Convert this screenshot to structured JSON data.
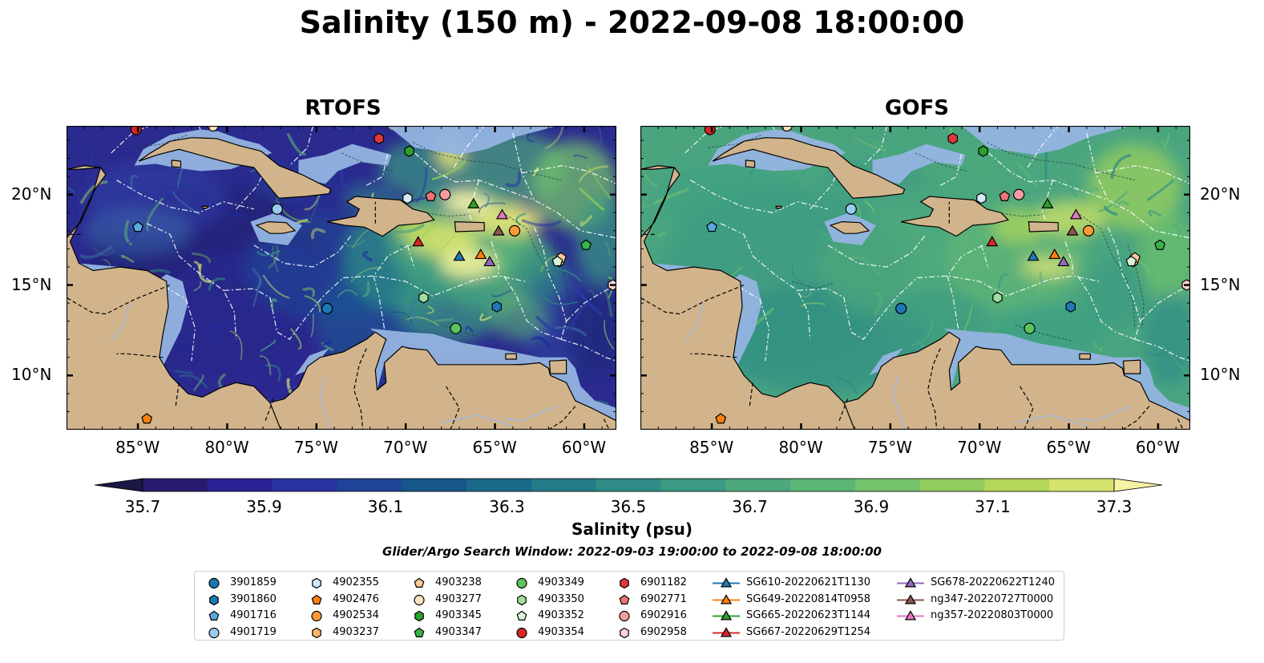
{
  "title": "Salinity (150 m) - 2022-09-08 18:00:00",
  "panels": [
    {
      "title": "RTOFS",
      "palette": "rtofs"
    },
    {
      "title": "GOFS",
      "palette": "gofs"
    }
  ],
  "axes": {
    "lon_ticks": [
      {
        "value": -85,
        "label": "85°W"
      },
      {
        "value": -80,
        "label": "80°W"
      },
      {
        "value": -75,
        "label": "75°W"
      },
      {
        "value": -70,
        "label": "70°W"
      },
      {
        "value": -65,
        "label": "65°W"
      },
      {
        "value": -60,
        "label": "60°W"
      }
    ],
    "lat_ticks": [
      {
        "value": 20,
        "label": "20°N"
      },
      {
        "value": 15,
        "label": "15°N"
      },
      {
        "value": 10,
        "label": "10°N"
      }
    ],
    "lon_range": [
      -89,
      -58.2
    ],
    "lat_range": [
      7,
      23.8
    ]
  },
  "colorbar": {
    "label": "Salinity (psu)",
    "ticks": [
      "35.7",
      "35.9",
      "36.1",
      "36.3",
      "36.5",
      "36.7",
      "36.9",
      "37.1",
      "37.3"
    ],
    "colors": [
      "#2a1a6e",
      "#2a2295",
      "#2733a0",
      "#1f4497",
      "#175689",
      "#1a6988",
      "#237b88",
      "#2e8b86",
      "#3b9a82",
      "#4ca87c",
      "#5bb576",
      "#74c26b",
      "#90cc5e",
      "#b3d758",
      "#d5e36e"
    ],
    "under_color": "#1b1845",
    "over_color": "#f6f3a5"
  },
  "search_window": "Glider/Argo Search Window: 2022-09-03 19:00:00 to 2022-09-08 18:00:00",
  "colors": {
    "land": "#d2b48c",
    "shelf": "#93b4e0",
    "eez_lines": "#ffffff"
  },
  "chart_data": {
    "type": "map",
    "variable": "Salinity",
    "depth": "150 m",
    "time": "2022-09-08 18:00:00",
    "floats": [
      {
        "name": "3901859",
        "marker": "circle",
        "color": "#1f77b4",
        "lon": -74.4,
        "lat": 13.7
      },
      {
        "name": "3901860",
        "marker": "hexagon",
        "color": "#1f77b4",
        "lon": -64.9,
        "lat": 13.8
      },
      {
        "name": "4901716",
        "marker": "pentagon",
        "color": "#5aa9de",
        "lon": -85.0,
        "lat": 18.2
      },
      {
        "name": "4901719",
        "marker": "circle",
        "color": "#9ccbf0",
        "lon": -77.2,
        "lat": 19.2
      },
      {
        "name": "4902355",
        "marker": "hexagon",
        "color": "#d5e8f8",
        "lon": -69.9,
        "lat": 19.8
      },
      {
        "name": "4902476",
        "marker": "pentagon",
        "color": "#ff7f0e",
        "lon": -84.5,
        "lat": 7.6
      },
      {
        "name": "4902534",
        "marker": "circle",
        "color": "#ff9b35",
        "lon": -63.9,
        "lat": 18.0
      },
      {
        "name": "4903237",
        "marker": "hexagon",
        "color": "#ffb36b",
        "lon": -61.4,
        "lat": 16.3
      },
      {
        "name": "4903238",
        "marker": "pentagon",
        "color": "#ffc99a",
        "lon": -61.3,
        "lat": 16.5
      },
      {
        "name": "4903277",
        "marker": "circle",
        "color": "#ffe0c2",
        "lon": -80.8,
        "lat": 23.8
      },
      {
        "name": "4903345",
        "marker": "hexagon",
        "color": "#2ca02c",
        "lon": -69.8,
        "lat": 22.4
      },
      {
        "name": "4903347",
        "marker": "pentagon",
        "color": "#39b44a",
        "lon": -59.9,
        "lat": 17.2
      },
      {
        "name": "4903349",
        "marker": "circle",
        "color": "#5cc45c",
        "lon": -67.2,
        "lat": 12.6
      },
      {
        "name": "4903350",
        "marker": "hexagon",
        "color": "#9ee09e",
        "lon": -69.0,
        "lat": 14.3
      },
      {
        "name": "4903352",
        "marker": "pentagon",
        "color": "#d7f5d7",
        "lon": -61.5,
        "lat": 16.3
      },
      {
        "name": "4903354",
        "marker": "circle",
        "color": "#d62728",
        "lon": -85.1,
        "lat": 23.6
      },
      {
        "name": "6901182",
        "marker": "hexagon",
        "color": "#e0383a",
        "lon": -71.5,
        "lat": 23.1
      },
      {
        "name": "6902771",
        "marker": "pentagon",
        "color": "#f0737a",
        "lon": -68.6,
        "lat": 19.9
      },
      {
        "name": "6902916",
        "marker": "circle",
        "color": "#f49ea3",
        "lon": -67.8,
        "lat": 20.0
      },
      {
        "name": "6902958",
        "marker": "hexagon",
        "color": "#fbd2d4",
        "lon": -58.4,
        "lat": 15.0
      }
    ],
    "gliders": [
      {
        "name": "SG610-20220621T1130",
        "marker": "triangle",
        "color": "#1f77b4",
        "lon": -67.0,
        "lat": 16.6
      },
      {
        "name": "SG649-20220814T0958",
        "marker": "triangle",
        "color": "#ff7f0e",
        "lon": -65.8,
        "lat": 16.7
      },
      {
        "name": "SG665-20220623T1144",
        "marker": "triangle",
        "color": "#2ca02c",
        "lon": -66.2,
        "lat": 19.5
      },
      {
        "name": "SG667-20220629T1254",
        "marker": "triangle",
        "color": "#d62728",
        "lon": -69.3,
        "lat": 17.4
      },
      {
        "name": "SG678-20220622T1240",
        "marker": "triangle",
        "color": "#9467bd",
        "lon": -65.3,
        "lat": 16.3
      },
      {
        "name": "ng347-20220727T0000",
        "marker": "triangle",
        "color": "#8c564b",
        "lon": -64.8,
        "lat": 18.0
      },
      {
        "name": "ng357-20220803T0000",
        "marker": "triangle",
        "color": "#e377c2",
        "lon": -64.6,
        "lat": 18.9
      }
    ]
  }
}
